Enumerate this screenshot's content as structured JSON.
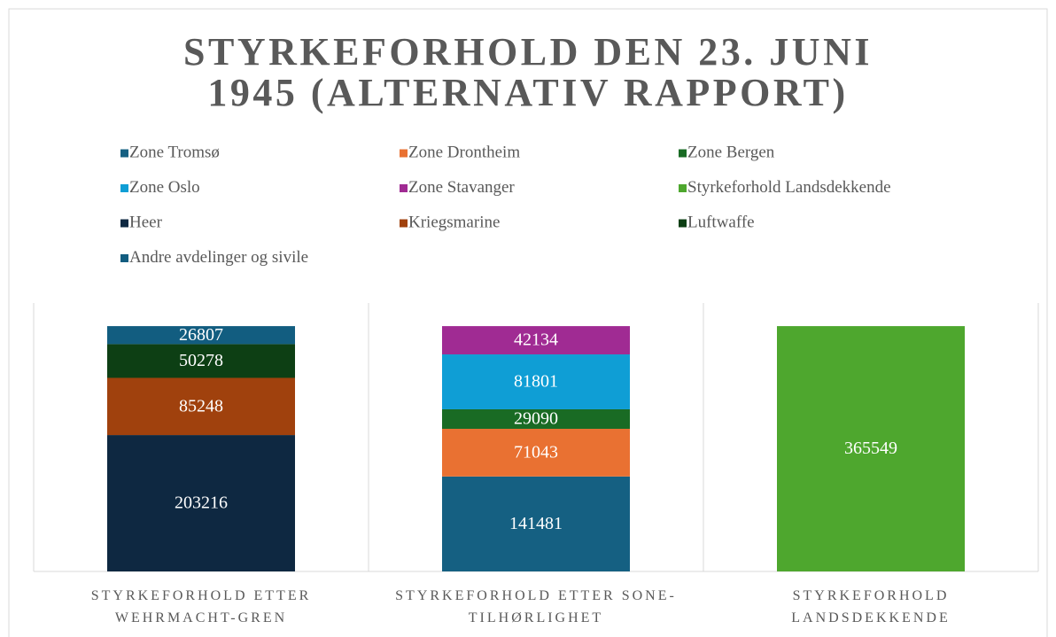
{
  "chart_data": {
    "type": "stacked_bar",
    "title": "STYRKEFORHOLD DEN 23. JUNI 1945 (ALTERNATIV RAPPORT)",
    "categories": [
      "STYRKEFORHOLD ETTER WEHRMACHT-GREN",
      "STYRKEFORHOLD ETTER SONE-TILHØRLIGHET",
      "STYRKEFORHOLD LANDSDEKKENDE"
    ],
    "series": [
      {
        "name": "Zone Tromsø",
        "color": "#156082",
        "values": [
          null,
          141481,
          null
        ]
      },
      {
        "name": "Zone Drontheim",
        "color": "#e97132",
        "values": [
          null,
          71043,
          null
        ]
      },
      {
        "name": "Zone Bergen",
        "color": "#196b24",
        "values": [
          null,
          29090,
          null
        ]
      },
      {
        "name": "Zone Oslo",
        "color": "#0f9ed5",
        "values": [
          null,
          81801,
          null
        ]
      },
      {
        "name": "Zone Stavanger",
        "color": "#a02b93",
        "values": [
          null,
          42134,
          null
        ]
      },
      {
        "name": "Styrkeforhold Landsdekkende",
        "color": "#4ea72e",
        "values": [
          null,
          null,
          365549
        ]
      },
      {
        "name": "Heer",
        "color": "#0e2841",
        "values": [
          203216,
          null,
          null
        ]
      },
      {
        "name": "Kriegsmarine",
        "color": "#a0410d",
        "values": [
          85248,
          null,
          null
        ]
      },
      {
        "name": "Luftwaffe",
        "color": "#0d3f14",
        "values": [
          50278,
          null,
          null
        ]
      },
      {
        "name": "Andre avdelinger og sivile",
        "color": "#125d80",
        "values": [
          26807,
          null,
          null
        ]
      }
    ],
    "ylim": [
      0,
      400000
    ],
    "legend": "top"
  }
}
